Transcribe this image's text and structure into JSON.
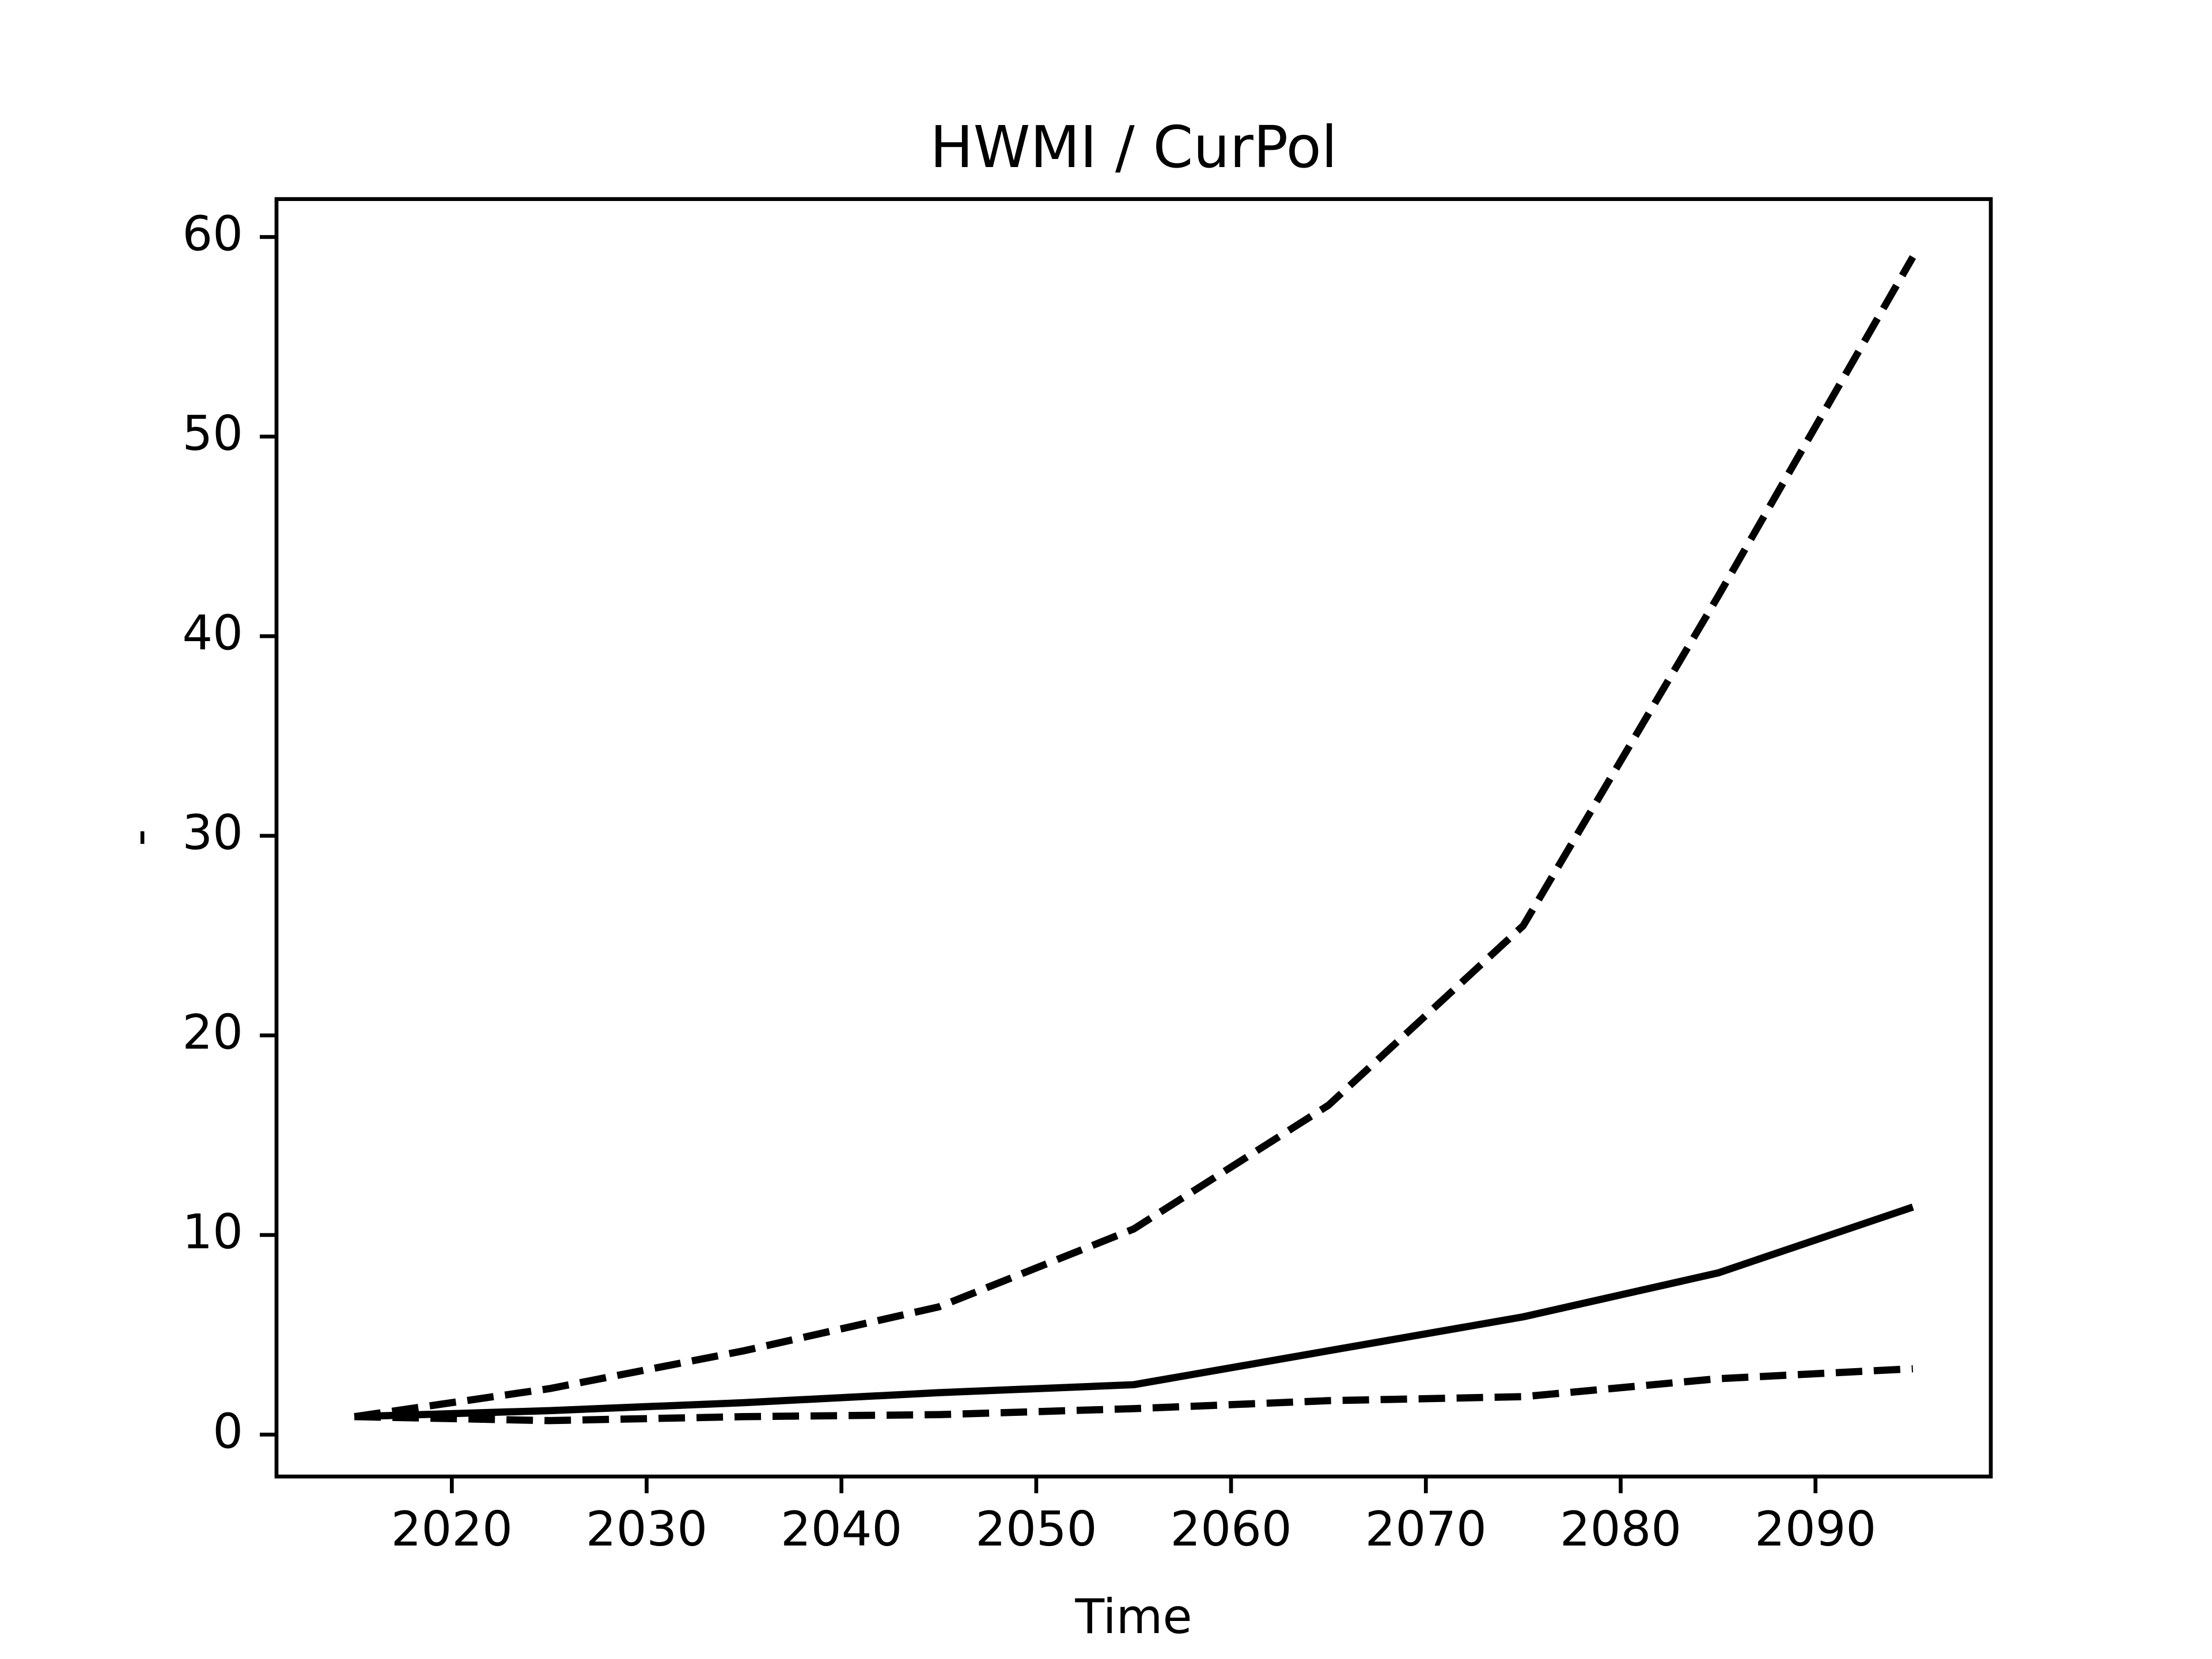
{
  "chart_data": {
    "type": "line",
    "title": "HWMI / CurPol",
    "x_label": "Time",
    "y_label": "-",
    "x": [
      2015,
      2025,
      2035,
      2045,
      2055,
      2065,
      2075,
      2085,
      2095
    ],
    "series": [
      {
        "color": "#000000",
        "linestyle": "solid",
        "values": [
          0.9,
          1.2,
          1.6,
          2.1,
          2.5,
          4.2,
          5.9,
          8.1,
          11.4
        ]
      },
      {
        "color": "#000000",
        "linestyle": "dashed",
        "values": [
          0.9,
          2.3,
          4.2,
          6.4,
          10.3,
          16.5,
          25.5,
          42.0,
          59.0
        ]
      },
      {
        "color": "#000000",
        "linestyle": "dashed",
        "values": [
          0.9,
          0.7,
          0.9,
          1.0,
          1.3,
          1.7,
          1.9,
          2.8,
          3.3
        ]
      }
    ],
    "xlim": [
      2011,
      2099
    ],
    "xticks": [
      2020,
      2030,
      2040,
      2050,
      2060,
      2070,
      2080,
      2090
    ],
    "ylim": [
      -2.1,
      61.9
    ],
    "yticks": [
      0,
      10,
      20,
      30,
      40,
      50,
      60
    ],
    "grid": false
  }
}
